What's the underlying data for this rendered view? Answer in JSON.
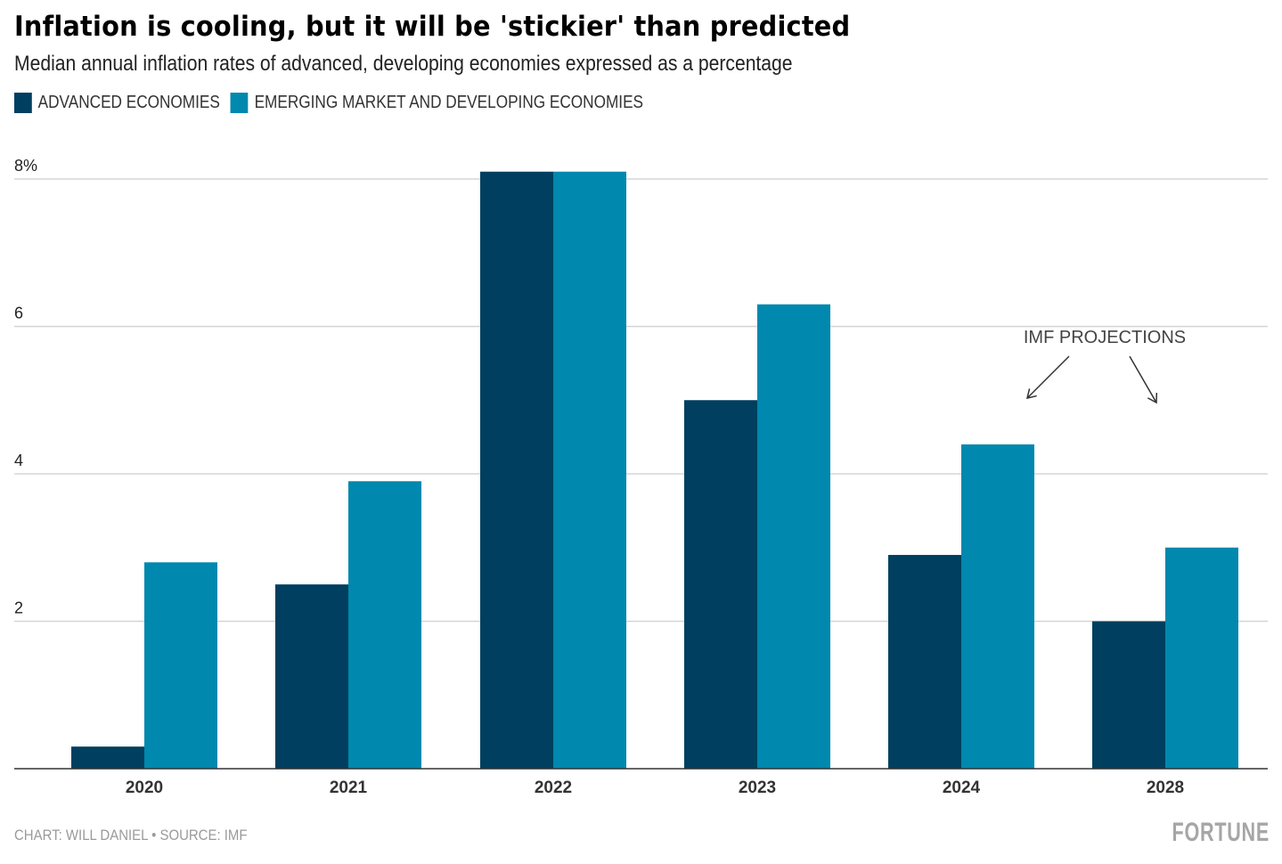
{
  "header": {
    "title": "Inflation is cooling, but it will be 'stickier' than predicted",
    "subtitle": "Median annual inflation rates of advanced, developing economies expressed as a percentage"
  },
  "footer": {
    "credit": "CHART: WILL DANIEL • SOURCE: IMF",
    "brand": "FORTUNE"
  },
  "colors": {
    "advanced": "#003f5f",
    "emerging": "#0088ae",
    "grid": "#d5d5d5",
    "axis": "#333333"
  },
  "chart_data": {
    "type": "bar",
    "title": "Inflation is cooling, but it will be 'stickier' than predicted",
    "subtitle": "Median annual inflation rates of advanced, developing economies expressed as a percentage",
    "xlabel": "",
    "ylabel": "",
    "categories": [
      "2020",
      "2021",
      "2022",
      "2023",
      "2024",
      "2028"
    ],
    "series": [
      {
        "name": "ADVANCED ECONOMIES",
        "values": [
          0.3,
          2.5,
          8.1,
          5.0,
          2.9,
          2.0
        ]
      },
      {
        "name": "EMERGING MARKET AND DEVELOPING ECONOMIES",
        "values": [
          2.8,
          3.9,
          8.1,
          6.3,
          4.4,
          3.0
        ]
      }
    ],
    "ylim": [
      0,
      8
    ],
    "yticks": [
      2,
      4,
      6,
      8
    ],
    "ytick_labels": [
      "2",
      "4",
      "6",
      "8%"
    ],
    "grid": true,
    "legend": "top-left",
    "annotations": [
      {
        "text": "IMF PROJECTIONS",
        "points_to": [
          "2024",
          "2028"
        ]
      }
    ]
  }
}
